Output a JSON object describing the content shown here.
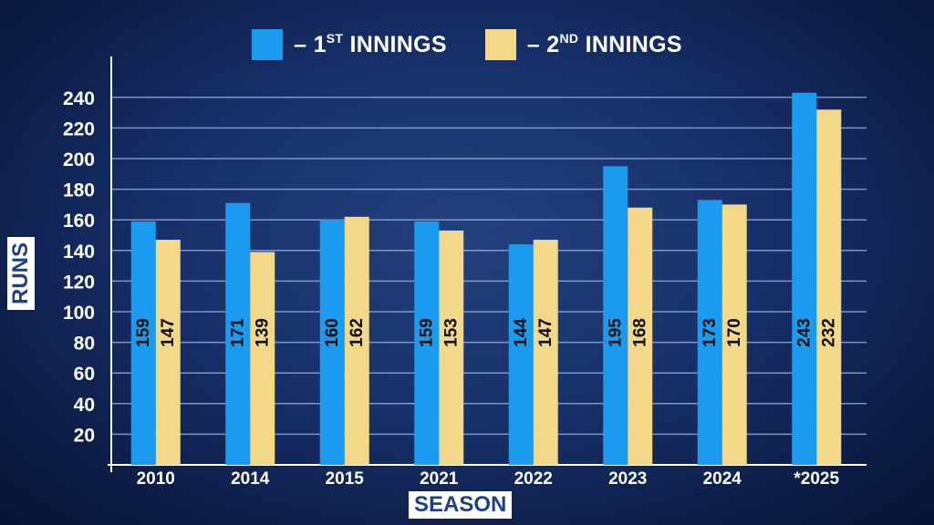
{
  "legend": {
    "dash": "–",
    "s1_pre": "1",
    "s1_sup": "ST",
    "s1_post": " INNINGS",
    "s2_pre": "2",
    "s2_sup": "ND",
    "s2_post": " INNINGS"
  },
  "colors": {
    "first": "#1a9bf0",
    "second": "#f3d88a",
    "grid": "#8fa8d6",
    "axis": "#ffffff"
  },
  "chart_data": {
    "type": "bar",
    "categories": [
      "2010",
      "2014",
      "2015",
      "2021",
      "2022",
      "2023",
      "2024",
      "*2025"
    ],
    "series": [
      {
        "name": "1ST INNINGS",
        "values": [
          159,
          171,
          160,
          159,
          144,
          195,
          173,
          243
        ]
      },
      {
        "name": "2ND INNINGS",
        "values": [
          147,
          139,
          162,
          153,
          147,
          168,
          170,
          232
        ]
      }
    ],
    "ylabel": "RUNS",
    "xlabel": "SEASON",
    "yticks": [
      20,
      40,
      60,
      80,
      100,
      120,
      140,
      160,
      180,
      200,
      220,
      240
    ],
    "ylim": [
      0,
      250
    ],
    "grid": true
  }
}
